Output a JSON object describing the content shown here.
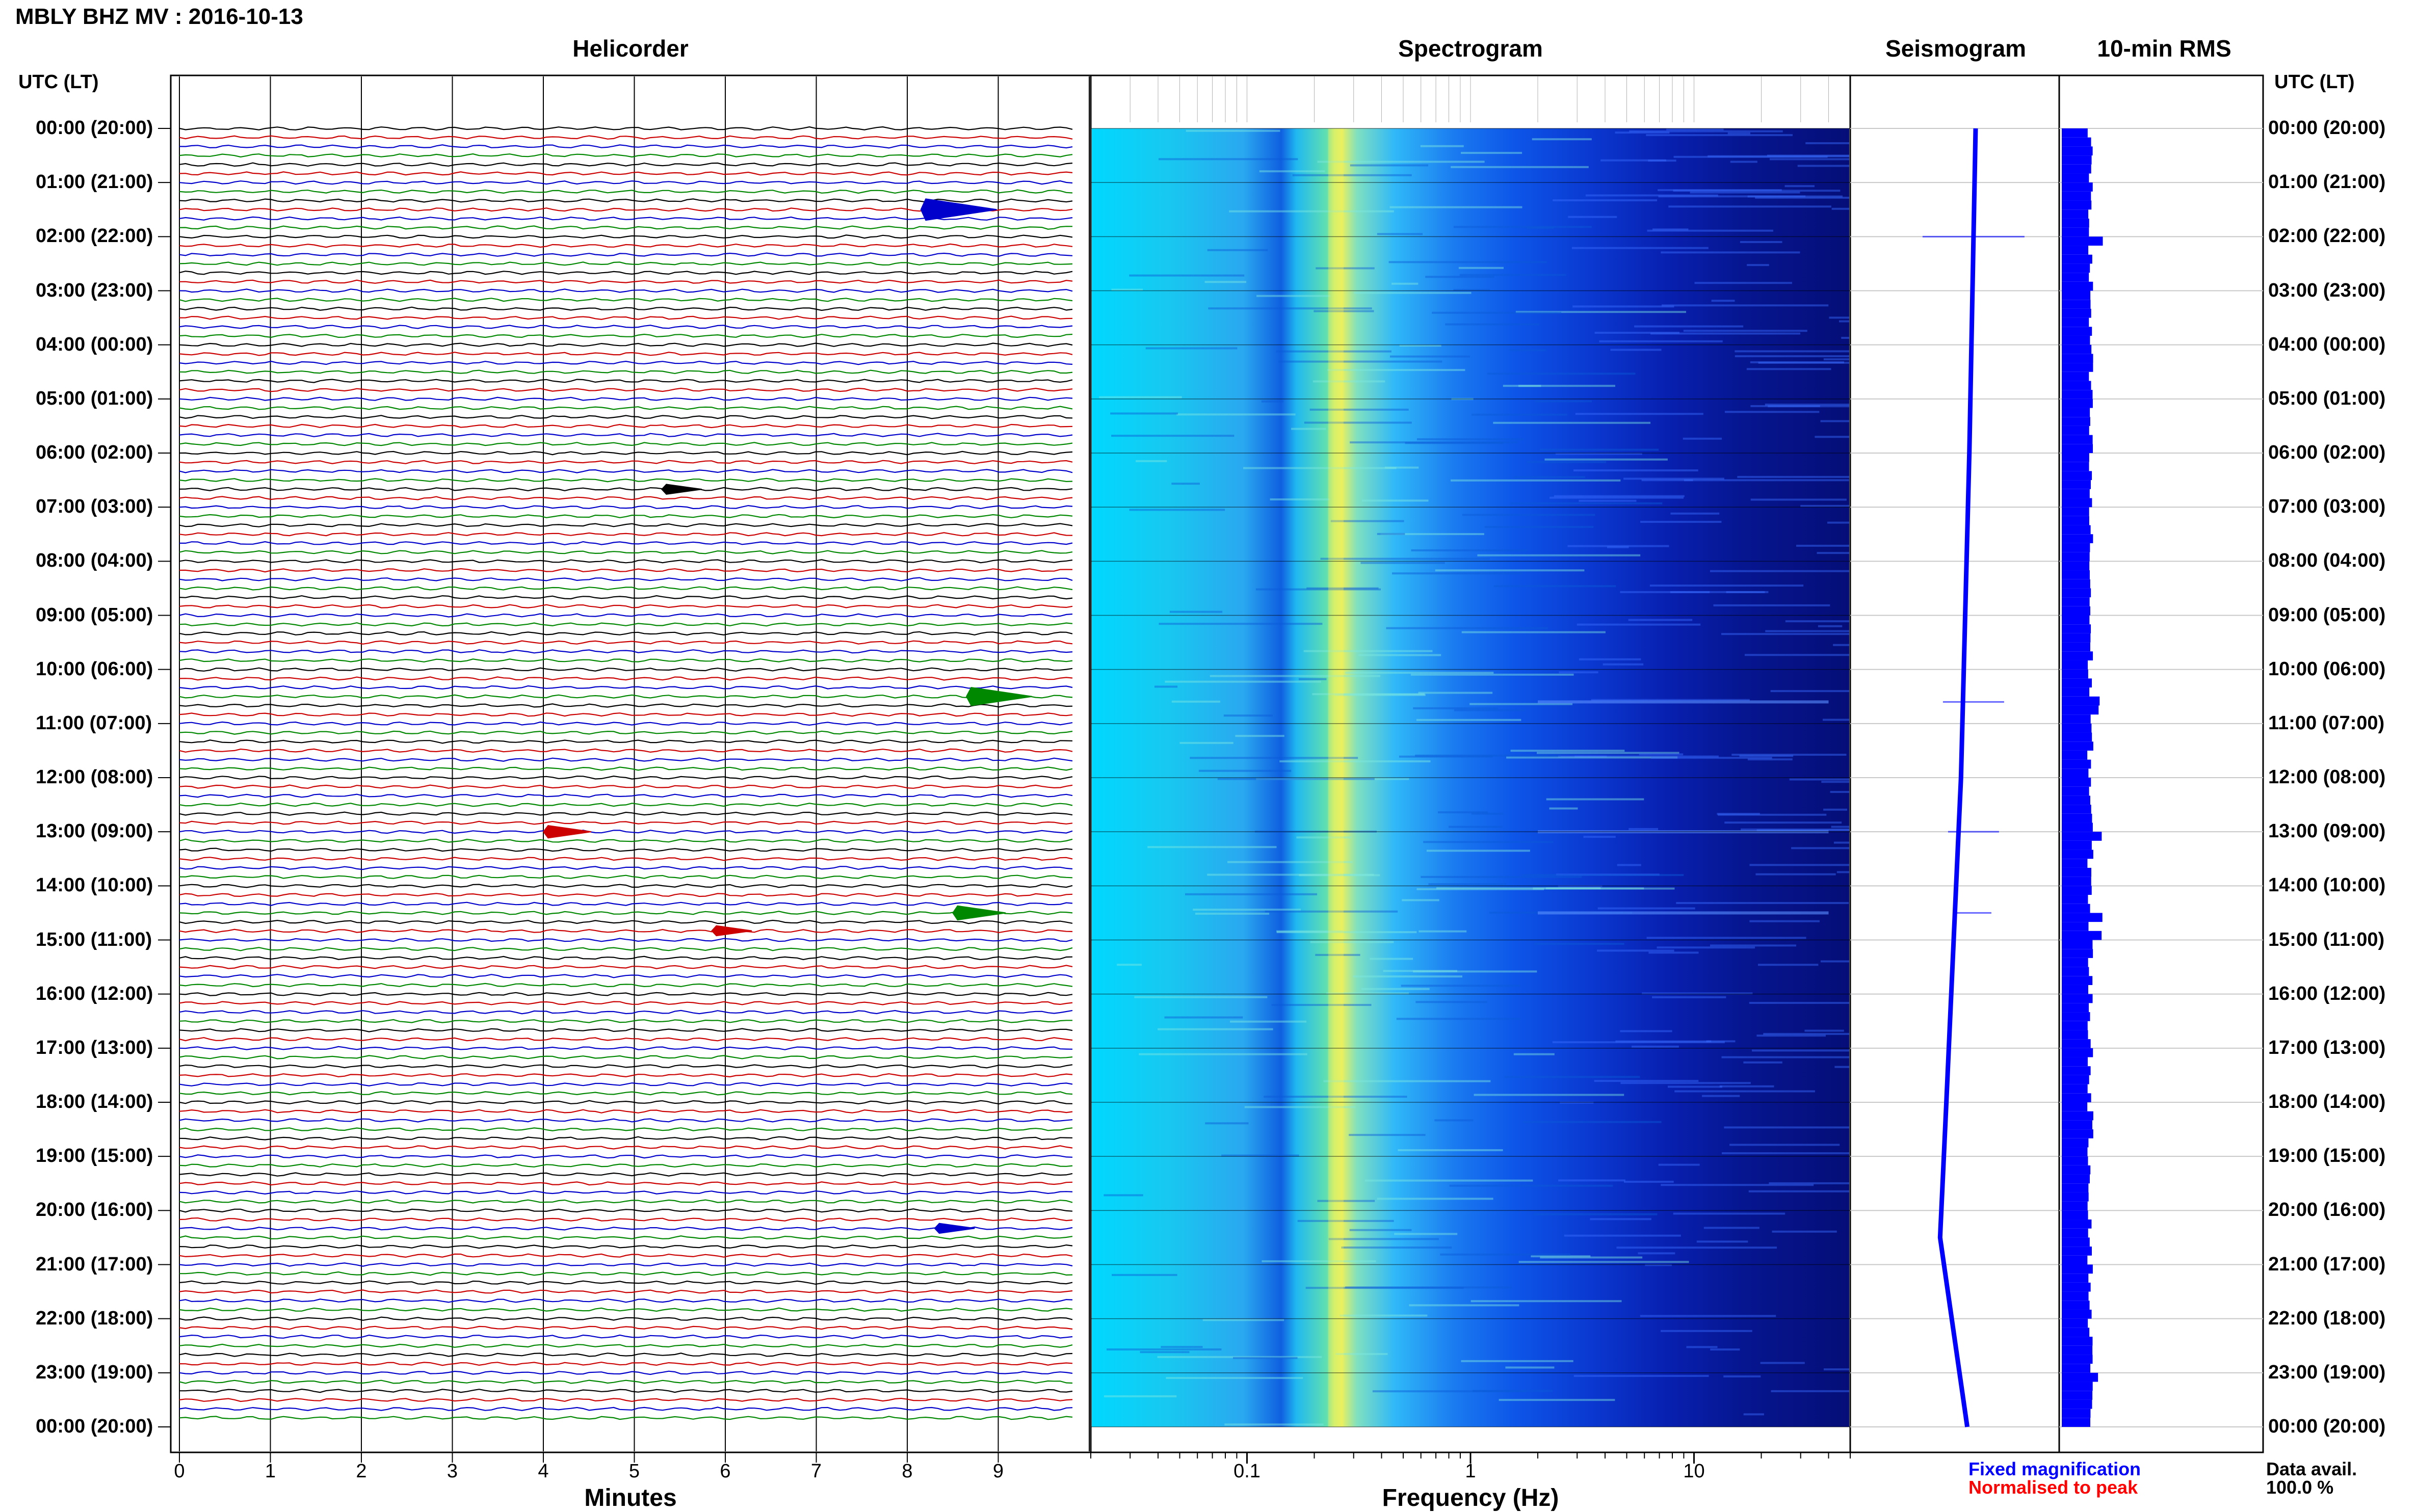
{
  "header": {
    "title": "MBLY BHZ MV : 2016-10-13"
  },
  "panels": {
    "helicorder": "Helicorder",
    "spectrogram": "Spectrogram",
    "seismogram": "Seismogram",
    "rms": "10-min RMS"
  },
  "axes": {
    "left_head": "UTC (LT)",
    "right_head": "UTC (LT)",
    "helicorder_xlabel": "Minutes",
    "spectrogram_xlabel": "Frequency (Hz)"
  },
  "legend": {
    "fixed": "Fixed magnification",
    "normalised": "Normalised to peak",
    "fixed_color": "#0000ff",
    "normalised_color": "#ff0000"
  },
  "data_avail": {
    "label": "Data avail.",
    "value": "100.0 %"
  },
  "chart_data": [
    {
      "type": "line",
      "name": "helicorder",
      "xlabel": "Minutes",
      "xlim": [
        0,
        10
      ],
      "x_ticks": [
        "0",
        "1",
        "2",
        "3",
        "4",
        "5",
        "6",
        "7",
        "8",
        "9"
      ],
      "trace_colors": [
        "#000000",
        "#cc0000",
        "#0000cc",
        "#008800"
      ],
      "events": [
        {
          "hour": 1.5,
          "minute": 8.2,
          "color": "#0000cc",
          "amp": 1.0
        },
        {
          "hour": 10.5,
          "minute": 8.7,
          "color": "#008800",
          "amp": 0.8
        },
        {
          "hour": 13.0,
          "minute": 4.05,
          "color": "#cc0000",
          "amp": 0.45
        },
        {
          "hour": 14.5,
          "minute": 8.55,
          "color": "#008800",
          "amp": 0.55
        },
        {
          "hour": 14.83,
          "minute": 5.9,
          "color": "#cc0000",
          "amp": 0.3
        },
        {
          "hour": 20.33,
          "minute": 8.35,
          "color": "#0000cc",
          "amp": 0.3
        },
        {
          "hour": 6.67,
          "minute": 5.35,
          "color": "#000000",
          "amp": 0.3
        }
      ]
    },
    {
      "type": "heatmap",
      "name": "spectrogram",
      "xlabel": "Frequency (Hz)",
      "x_scale": "log",
      "xlim": [
        0.02,
        50
      ],
      "x_ticks": [
        "0.1",
        "1",
        "10"
      ],
      "colormap": [
        "#00008b",
        "#0000ff",
        "#0080ff",
        "#00ffff",
        "#80ff80",
        "#ffff00"
      ],
      "peak_frequency": 0.25
    },
    {
      "type": "line",
      "name": "seismogram",
      "description_values": [
        {
          "hour": 0,
          "offset": 0.1
        },
        {
          "hour": 6,
          "offset": 0.07
        },
        {
          "hour": 12,
          "offset": 0.03
        },
        {
          "hour": 18,
          "offset": -0.04
        },
        {
          "hour": 20.5,
          "offset": -0.07
        },
        {
          "hour": 24,
          "offset": 0.06
        }
      ]
    },
    {
      "type": "bar",
      "name": "10-min RMS",
      "color": "#0000ff",
      "spikes_hours": [
        2.0,
        10.6,
        13.0,
        14.5,
        14.83,
        23.0
      ]
    }
  ],
  "time_labels": [
    "00:00 (20:00)",
    "01:00 (21:00)",
    "02:00 (22:00)",
    "03:00 (23:00)",
    "04:00 (00:00)",
    "05:00 (01:00)",
    "06:00 (02:00)",
    "07:00 (03:00)",
    "08:00 (04:00)",
    "09:00 (05:00)",
    "10:00 (06:00)",
    "11:00 (07:00)",
    "12:00 (08:00)",
    "13:00 (09:00)",
    "14:00 (10:00)",
    "15:00 (11:00)",
    "16:00 (12:00)",
    "17:00 (13:00)",
    "18:00 (14:00)",
    "19:00 (15:00)",
    "20:00 (16:00)",
    "21:00 (17:00)",
    "22:00 (18:00)",
    "23:00 (19:00)",
    "00:00 (20:00)"
  ]
}
